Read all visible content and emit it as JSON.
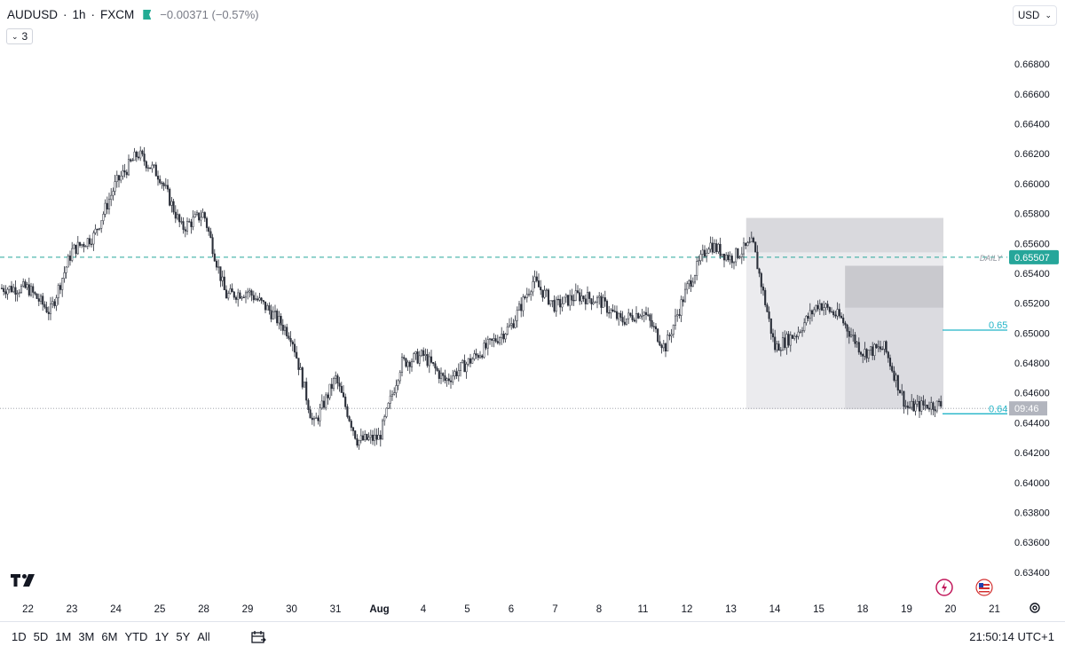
{
  "header": {
    "symbol": "AUDUSD",
    "sep1": "·",
    "interval": "1h",
    "sep2": "·",
    "exchange": "FXCM",
    "change": "−0.00371 (−0.57%)",
    "collapse_count": "3"
  },
  "currency_button": "USD",
  "price_scale": {
    "ticks": [
      "0.66800",
      "0.66600",
      "0.66400",
      "0.66200",
      "0.66000",
      "0.65800",
      "0.65600",
      "0.65400",
      "0.65200",
      "0.65000",
      "0.64800",
      "0.64600",
      "0.64400",
      "0.64200",
      "0.64000",
      "0.63800",
      "0.63600",
      "0.63400"
    ],
    "ymin": 0.6334,
    "ymax": 0.6686
  },
  "time_axis": {
    "labels": [
      "22",
      "23",
      "24",
      "25",
      "28",
      "29",
      "30",
      "31",
      "Aug",
      "4",
      "5",
      "6",
      "7",
      "8",
      "11",
      "12",
      "13",
      "14",
      "15",
      "18",
      "19",
      "20",
      "21"
    ],
    "bold_index": 8
  },
  "daily_line": {
    "label": "DAILY",
    "price": 0.65507,
    "price_label": "0.65507",
    "color": "#26a69a"
  },
  "last_price": {
    "price": 0.6452,
    "countdown": "09:46"
  },
  "side_labels": [
    {
      "text": "0.65",
      "price": 0.6502
    },
    {
      "text": "0.64",
      "price": 0.6446
    }
  ],
  "zones": [
    {
      "name": "outer",
      "from_time_index": 16.35,
      "to_time_index": 21.9,
      "top": 0.6577,
      "bottom": 0.6449
    },
    {
      "name": "inner",
      "from_time_index": 18.6,
      "to_time_index": 21.9,
      "top": 0.6545,
      "bottom": 0.6449
    }
  ],
  "range_buttons": [
    "1D",
    "5D",
    "1M",
    "3M",
    "6M",
    "YTD",
    "1Y",
    "5Y",
    "All"
  ],
  "clock": "21:50:14 UTC+1",
  "chart_data": {
    "type": "candlestick",
    "x": [
      0,
      0.5,
      1,
      1.5,
      2,
      2.5,
      3,
      3.5,
      4,
      4.5,
      5,
      5.5,
      6,
      6.5,
      7,
      7.5,
      8,
      8.5,
      9,
      9.5,
      10,
      10.5,
      11,
      11.5,
      12,
      12.5,
      13,
      13.5,
      14,
      14.5,
      15,
      15.5,
      16,
      16.5,
      17,
      17.5,
      18,
      18.5,
      19,
      19.5,
      20,
      20.5,
      21
    ],
    "y": [
      0.653,
      0.6514,
      0.6555,
      0.6565,
      0.66,
      0.662,
      0.6605,
      0.657,
      0.658,
      0.6525,
      0.6528,
      0.6515,
      0.6498,
      0.6438,
      0.647,
      0.6428,
      0.643,
      0.648,
      0.6485,
      0.6468,
      0.648,
      0.6492,
      0.6505,
      0.6535,
      0.6518,
      0.6525,
      0.6522,
      0.6508,
      0.6515,
      0.649,
      0.653,
      0.656,
      0.655,
      0.656,
      0.649,
      0.65,
      0.652,
      0.651,
      0.6487,
      0.649,
      0.645,
      0.6452,
      0.6452
    ],
    "note": "approximate close path, index = trading-day label index",
    "xlabel": "",
    "ylabel": ""
  },
  "colors": {
    "candle": "#2a2e39",
    "zone_outer": "#ebebee",
    "zone_inner": "#cfcfd4",
    "side_line": "#22b5c8"
  }
}
